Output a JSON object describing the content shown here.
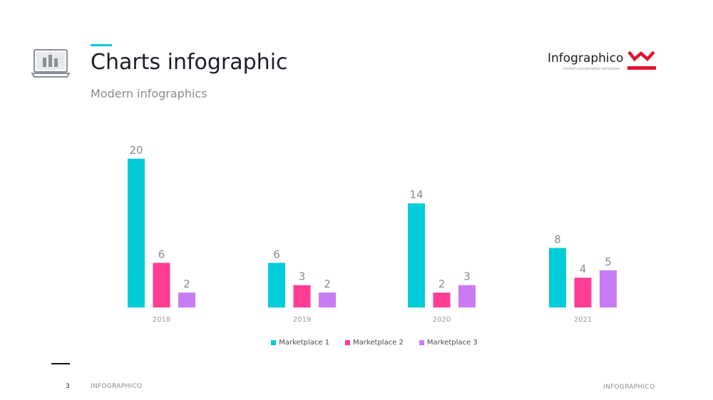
{
  "header": {
    "title": "Charts infographic",
    "subtitle": "Modern infographics",
    "icon": "laptop-chart-icon",
    "accent_color": "#00c8d7"
  },
  "brand": {
    "name": "Infographico",
    "tagline": "modern presentation templates",
    "logo_color": "#e3152b"
  },
  "chart_data": {
    "type": "bar",
    "categories": [
      "2018",
      "2019",
      "2020",
      "2021"
    ],
    "series": [
      {
        "name": "Marketplace 1",
        "color": "#00cdd8",
        "values": [
          20,
          6,
          14,
          8
        ]
      },
      {
        "name": "Marketplace 2",
        "color": "#ff3d95",
        "values": [
          6,
          3,
          2,
          4
        ]
      },
      {
        "name": "Marketplace 3",
        "color": "#c77cf5",
        "values": [
          2,
          2,
          3,
          5
        ]
      }
    ],
    "ylim": [
      0,
      20
    ],
    "grid": false,
    "data_labels": true,
    "legend_position": "bottom"
  },
  "footer": {
    "page_number": "3",
    "left_text": "INFOGRAPHICO",
    "right_text": "INFOGRAPHICO"
  }
}
